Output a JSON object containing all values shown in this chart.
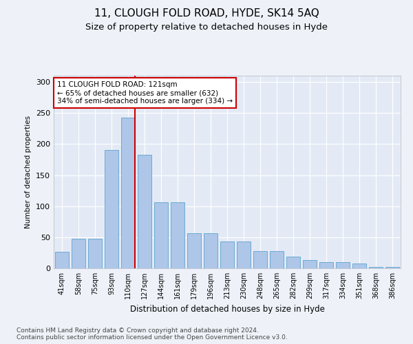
{
  "title1": "11, CLOUGH FOLD ROAD, HYDE, SK14 5AQ",
  "title2": "Size of property relative to detached houses in Hyde",
  "xlabel": "Distribution of detached houses by size in Hyde",
  "ylabel": "Number of detached properties",
  "categories": [
    "41sqm",
    "58sqm",
    "75sqm",
    "93sqm",
    "110sqm",
    "127sqm",
    "144sqm",
    "161sqm",
    "179sqm",
    "196sqm",
    "213sqm",
    "230sqm",
    "248sqm",
    "265sqm",
    "282sqm",
    "299sqm",
    "317sqm",
    "334sqm",
    "351sqm",
    "368sqm",
    "386sqm"
  ],
  "values": [
    27,
    48,
    48,
    190,
    242,
    183,
    106,
    106,
    56,
    56,
    43,
    43,
    28,
    28,
    19,
    13,
    10,
    10,
    8,
    2,
    2
  ],
  "bar_color": "#aec6e8",
  "bar_edge_color": "#6aaad4",
  "vline_color": "#cc0000",
  "annotation_text": "11 CLOUGH FOLD ROAD: 121sqm\n← 65% of detached houses are smaller (632)\n34% of semi-detached houses are larger (334) →",
  "annotation_box_color": "#ffffff",
  "annotation_box_edge": "#cc0000",
  "footnote": "Contains HM Land Registry data © Crown copyright and database right 2024.\nContains public sector information licensed under the Open Government Licence v3.0.",
  "bg_color": "#eef2f8",
  "plot_bg_color": "#e4eaf5",
  "grid_color": "#ffffff",
  "ylim": [
    0,
    310
  ],
  "title1_fontsize": 11,
  "title2_fontsize": 9.5,
  "footnote_fontsize": 6.5
}
